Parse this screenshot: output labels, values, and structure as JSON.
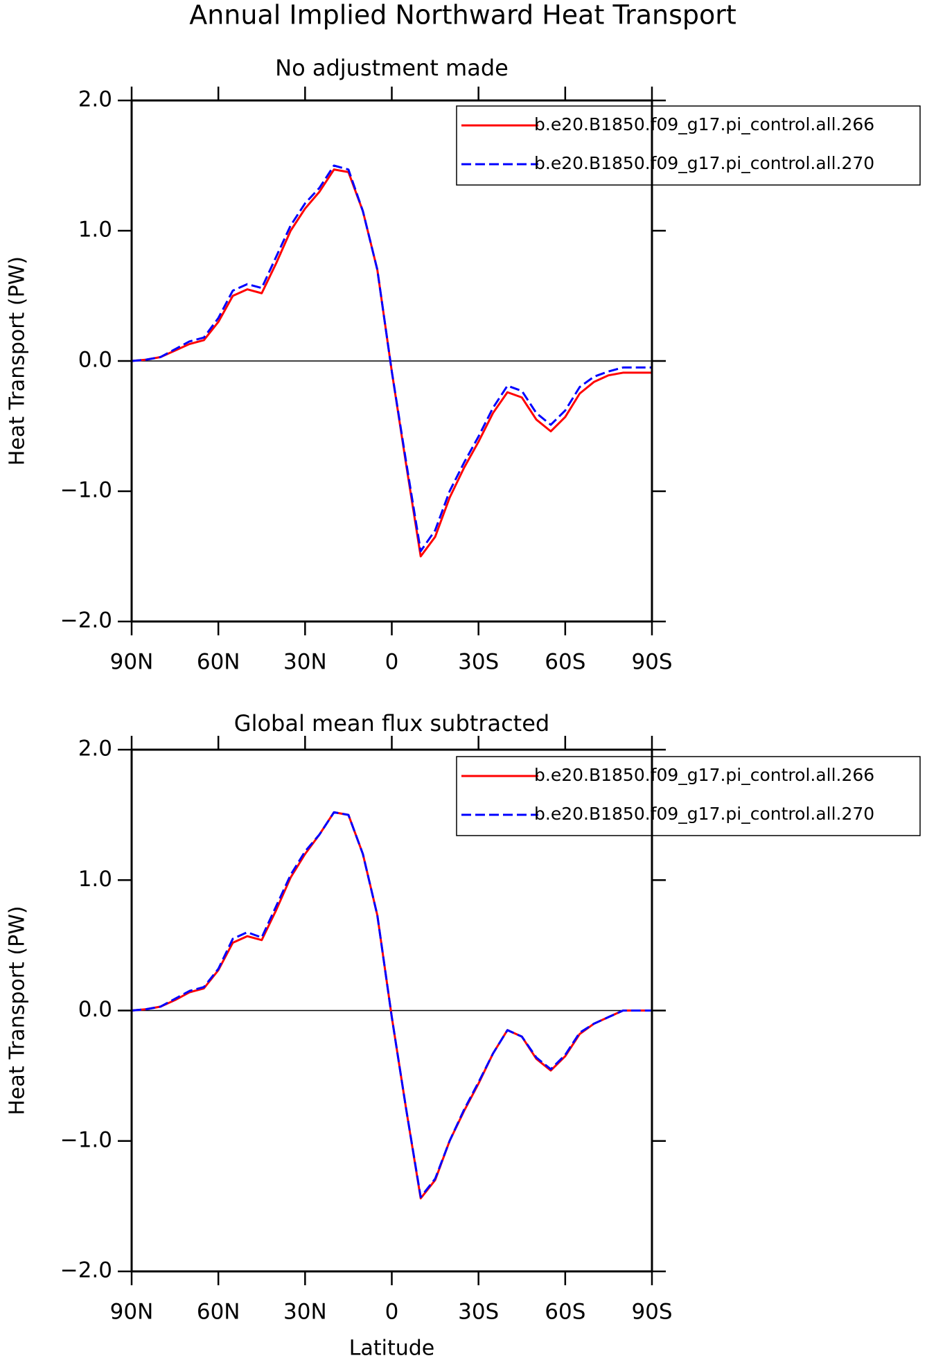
{
  "title": "Annual Implied Northward Heat Transport",
  "chart_data": [
    {
      "type": "line",
      "title": "No adjustment made",
      "ylabel": "Heat Transport (PW)",
      "x": [
        90,
        85,
        80,
        75,
        70,
        65,
        60,
        55,
        50,
        45,
        40,
        35,
        30,
        25,
        20,
        15,
        10,
        5,
        0,
        -5,
        -10,
        -15,
        -20,
        -25,
        -30,
        -35,
        -40,
        -45,
        -50,
        -55,
        -60,
        -65,
        -70,
        -75,
        -80,
        -85,
        -90
      ],
      "xlim": [
        90,
        -90
      ],
      "xticks": [
        {
          "value": 90,
          "label": "90N"
        },
        {
          "value": 60,
          "label": "60N"
        },
        {
          "value": 30,
          "label": "30N"
        },
        0,
        {
          "value": -30,
          "label": "30S"
        },
        {
          "value": -60,
          "label": "60S"
        },
        {
          "value": -90,
          "label": "90S"
        }
      ],
      "ylim": [
        -2,
        2
      ],
      "yticks": [
        {
          "value": -2,
          "label": "−2.0"
        },
        {
          "value": -1,
          "label": "−1.0"
        },
        {
          "value": 0,
          "label": "0.0"
        },
        {
          "value": 1,
          "label": "1.0"
        },
        {
          "value": 2,
          "label": "2.0"
        }
      ],
      "series": [
        {
          "name": "b.e20.B1850.f09_g17.pi_control.all.266",
          "color": "#ff0000",
          "linestyle": "solid",
          "values": [
            0,
            0.01,
            0.03,
            0.08,
            0.13,
            0.16,
            0.3,
            0.5,
            0.55,
            0.52,
            0.75,
            1.0,
            1.17,
            1.3,
            1.47,
            1.45,
            1.15,
            0.7,
            -0.08,
            -0.8,
            -1.5,
            -1.35,
            -1.05,
            -0.82,
            -0.62,
            -0.4,
            -0.24,
            -0.28,
            -0.45,
            -0.54,
            -0.43,
            -0.25,
            -0.16,
            -0.11,
            -0.09,
            -0.09,
            -0.09
          ]
        },
        {
          "name": "b.e20.B1850.f09_g17.pi_control.all.270",
          "color": "#0000ff",
          "linestyle": "dashed",
          "values": [
            0,
            0.01,
            0.03,
            0.09,
            0.15,
            0.18,
            0.33,
            0.54,
            0.59,
            0.56,
            0.8,
            1.04,
            1.21,
            1.33,
            1.5,
            1.47,
            1.15,
            0.7,
            -0.08,
            -0.78,
            -1.46,
            -1.3,
            -1.0,
            -0.78,
            -0.58,
            -0.36,
            -0.19,
            -0.23,
            -0.4,
            -0.49,
            -0.38,
            -0.2,
            -0.12,
            -0.08,
            -0.05,
            -0.05,
            -0.05
          ]
        }
      ]
    },
    {
      "type": "line",
      "title": "Global mean flux subtracted",
      "ylabel": "Heat Transport (PW)",
      "xlabel": "Latitude",
      "x": [
        90,
        85,
        80,
        75,
        70,
        65,
        60,
        55,
        50,
        45,
        40,
        35,
        30,
        25,
        20,
        15,
        10,
        5,
        0,
        -5,
        -10,
        -15,
        -20,
        -25,
        -30,
        -35,
        -40,
        -45,
        -50,
        -55,
        -60,
        -65,
        -70,
        -75,
        -80,
        -85,
        -90
      ],
      "xlim": [
        90,
        -90
      ],
      "xticks": [
        {
          "value": 90,
          "label": "90N"
        },
        {
          "value": 60,
          "label": "60N"
        },
        {
          "value": 30,
          "label": "30N"
        },
        0,
        {
          "value": -30,
          "label": "30S"
        },
        {
          "value": -60,
          "label": "60S"
        },
        {
          "value": -90,
          "label": "90S"
        }
      ],
      "ylim": [
        -2,
        2
      ],
      "yticks": [
        {
          "value": -2,
          "label": "−2.0"
        },
        {
          "value": -1,
          "label": "−1.0"
        },
        {
          "value": 0,
          "label": "0.0"
        },
        {
          "value": 1,
          "label": "1.0"
        },
        {
          "value": 2,
          "label": "2.0"
        }
      ],
      "series": [
        {
          "name": "b.e20.B1850.f09_g17.pi_control.all.266",
          "color": "#ff0000",
          "linestyle": "solid",
          "values": [
            0,
            0.01,
            0.03,
            0.08,
            0.14,
            0.17,
            0.31,
            0.52,
            0.57,
            0.54,
            0.77,
            1.02,
            1.2,
            1.35,
            1.52,
            1.5,
            1.2,
            0.73,
            -0.05,
            -0.76,
            -1.44,
            -1.3,
            -1.0,
            -0.77,
            -0.56,
            -0.33,
            -0.15,
            -0.2,
            -0.37,
            -0.46,
            -0.35,
            -0.18,
            -0.1,
            -0.05,
            0.0,
            0.0,
            0.0
          ]
        },
        {
          "name": "b.e20.B1850.f09_g17.pi_control.all.270",
          "color": "#0000ff",
          "linestyle": "dashed",
          "values": [
            0,
            0.01,
            0.03,
            0.09,
            0.15,
            0.18,
            0.32,
            0.55,
            0.6,
            0.56,
            0.8,
            1.04,
            1.22,
            1.35,
            1.52,
            1.5,
            1.2,
            0.73,
            -0.05,
            -0.76,
            -1.43,
            -1.29,
            -1.0,
            -0.76,
            -0.55,
            -0.33,
            -0.15,
            -0.2,
            -0.36,
            -0.45,
            -0.34,
            -0.17,
            -0.1,
            -0.05,
            0.0,
            0.0,
            0.0
          ]
        }
      ]
    }
  ]
}
